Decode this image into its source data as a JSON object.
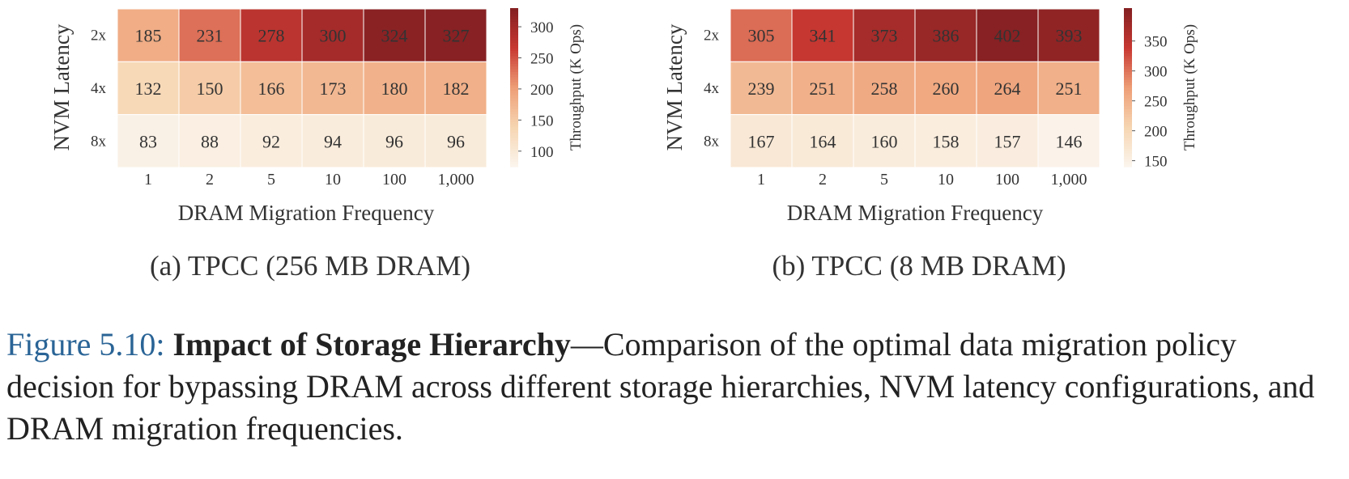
{
  "chart_data": [
    {
      "type": "heatmap",
      "caption": "(a) TPCC (256 MB DRAM)",
      "xlabel": "DRAM Migration Frequency",
      "ylabel": "NVM Latency",
      "x_categories": [
        "1",
        "2",
        "5",
        "10",
        "100",
        "1,000"
      ],
      "y_categories": [
        "2x",
        "4x",
        "8x"
      ],
      "values": [
        [
          185,
          231,
          278,
          300,
          324,
          327
        ],
        [
          132,
          150,
          166,
          173,
          180,
          182
        ],
        [
          83,
          88,
          92,
          94,
          96,
          96
        ]
      ],
      "colorbar": {
        "label": "Throughput (K Ops)",
        "range": [
          75,
          330
        ],
        "ticks": [
          "100",
          "150",
          "200",
          "250",
          "300"
        ]
      }
    },
    {
      "type": "heatmap",
      "caption": "(b) TPCC (8 MB DRAM)",
      "xlabel": "DRAM Migration Frequency",
      "ylabel": "NVM Latency",
      "x_categories": [
        "1",
        "2",
        "5",
        "10",
        "100",
        "1,000"
      ],
      "y_categories": [
        "2x",
        "4x",
        "8x"
      ],
      "values": [
        [
          305,
          341,
          373,
          386,
          402,
          393
        ],
        [
          239,
          251,
          258,
          260,
          264,
          251
        ],
        [
          167,
          164,
          160,
          158,
          157,
          146
        ]
      ],
      "colorbar": {
        "label": "Throughput (K Ops)",
        "range": [
          140,
          405
        ],
        "ticks": [
          "150",
          "200",
          "250",
          "300",
          "350"
        ]
      }
    }
  ],
  "caption": {
    "figure_number": "Figure 5.10:",
    "title": "Impact of Storage Hierarchy",
    "text": "—Comparison of the optimal data migration policy decision for bypassing DRAM across different storage hierarchies, NVM latency configurations, and DRAM migration frequencies."
  }
}
